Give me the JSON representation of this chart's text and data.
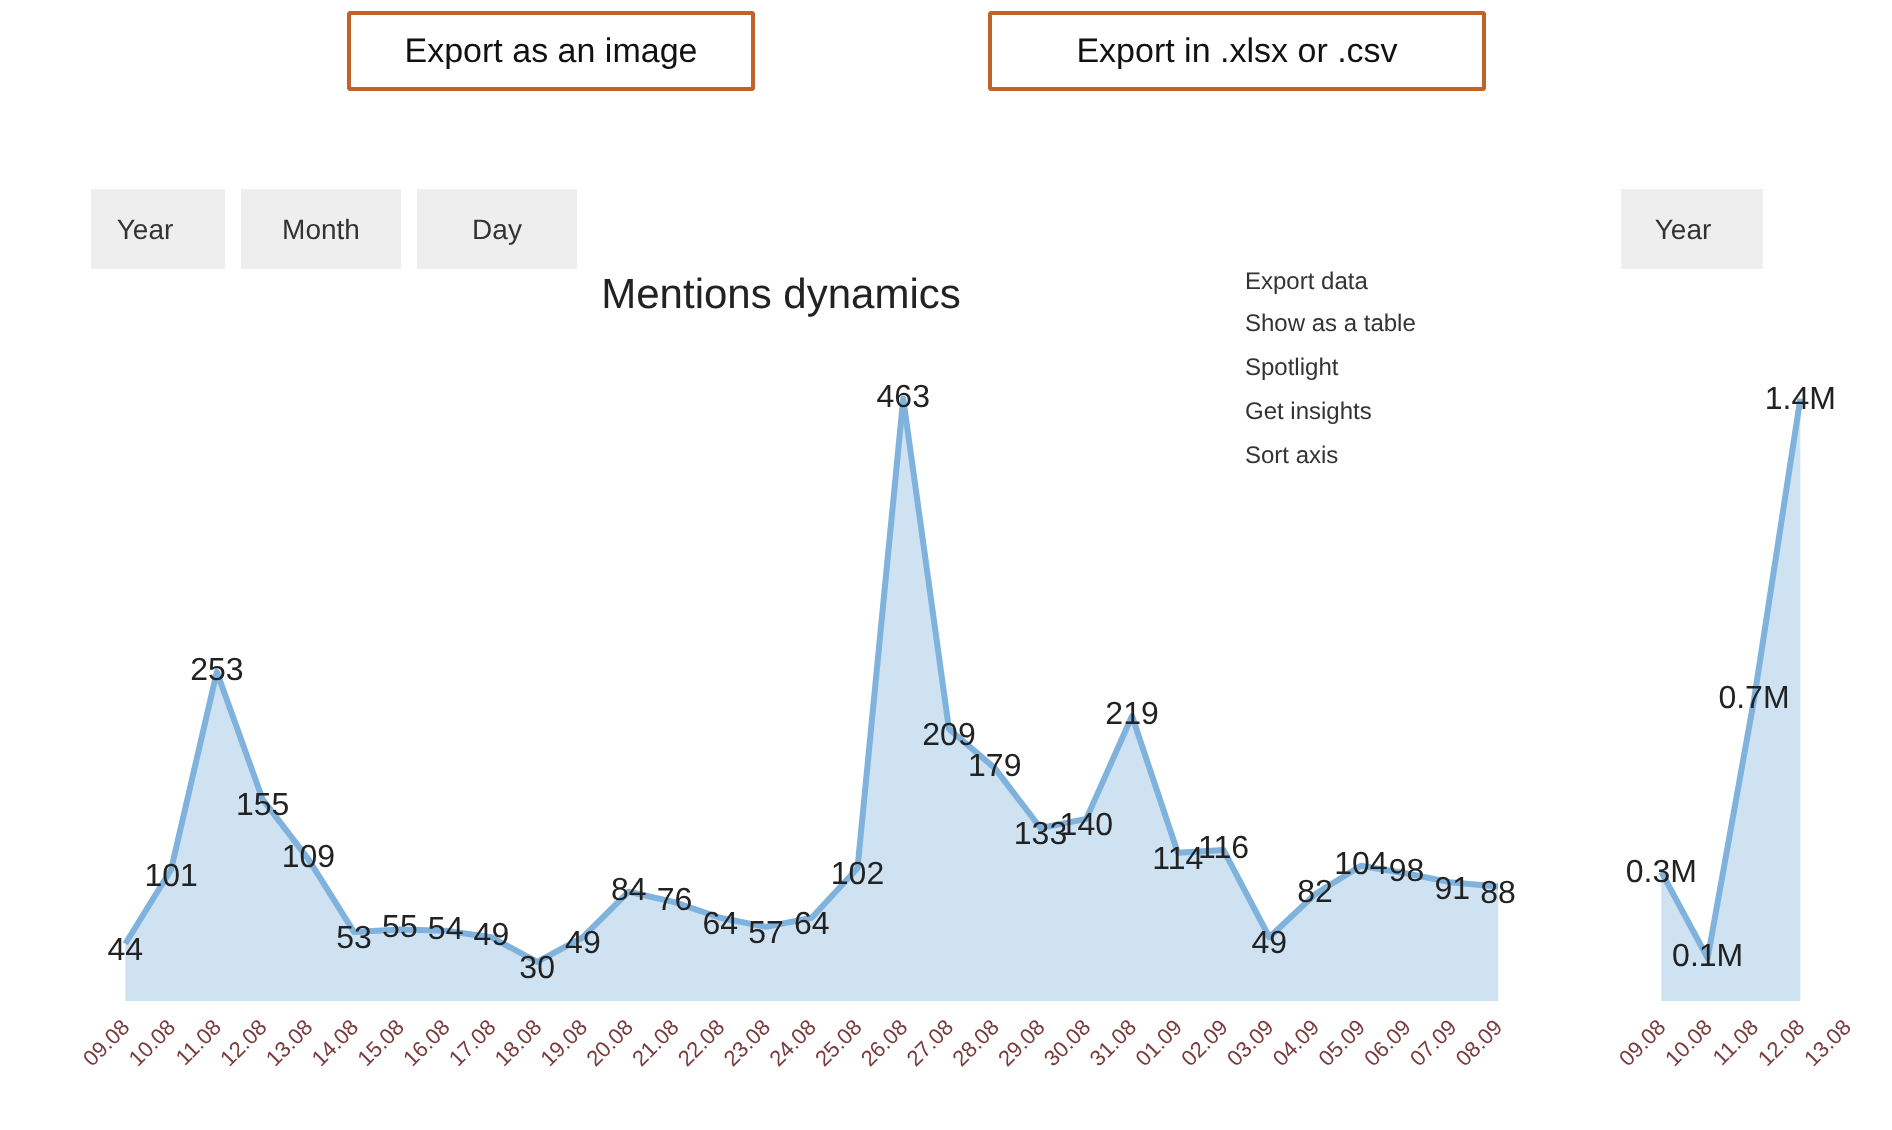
{
  "chart_data": [
    {
      "type": "area",
      "title": "Mentions dynamics",
      "categories": [
        "09.08",
        "10.08",
        "11.08",
        "12.08",
        "13.08",
        "14.08",
        "15.08",
        "16.08",
        "17.08",
        "18.08",
        "19.08",
        "20.08",
        "21.08",
        "22.08",
        "23.08",
        "24.08",
        "25.08",
        "26.08",
        "27.08",
        "28.08",
        "29.08",
        "30.08",
        "31.08",
        "01.09",
        "02.09",
        "03.09",
        "04.09",
        "05.09",
        "06.09",
        "07.09",
        "08.09"
      ],
      "series": [
        {
          "color": "#7fb2dc",
          "values": [
            44,
            101,
            253,
            155,
            109,
            53,
            55,
            54,
            49,
            30,
            49,
            84,
            76,
            64,
            57,
            64,
            102,
            463,
            209,
            179,
            133,
            140,
            219,
            114,
            116,
            49,
            82,
            104,
            98,
            91,
            88
          ]
        }
      ],
      "data_labels": true,
      "annotations": [
        "Year",
        "Month",
        "Day",
        "Export as an image",
        "Export in .xlsx or .csv",
        "Export data",
        "Show as a table",
        "Spotlight",
        "Get insights",
        "Sort axis"
      ]
    },
    {
      "type": "area",
      "categories": [
        "09.08",
        "10.08",
        "11.08",
        "12.08",
        "13.08"
      ],
      "series": [
        {
          "color": "#7fb2dc",
          "values": [
            0.3,
            0.1,
            0.7,
            1.4,
            null
          ],
          "value_labels": [
            "0.3M",
            "0.1M",
            "0.7M",
            "1.4M",
            null
          ]
        }
      ],
      "annotations": [
        "Year"
      ]
    }
  ]
}
